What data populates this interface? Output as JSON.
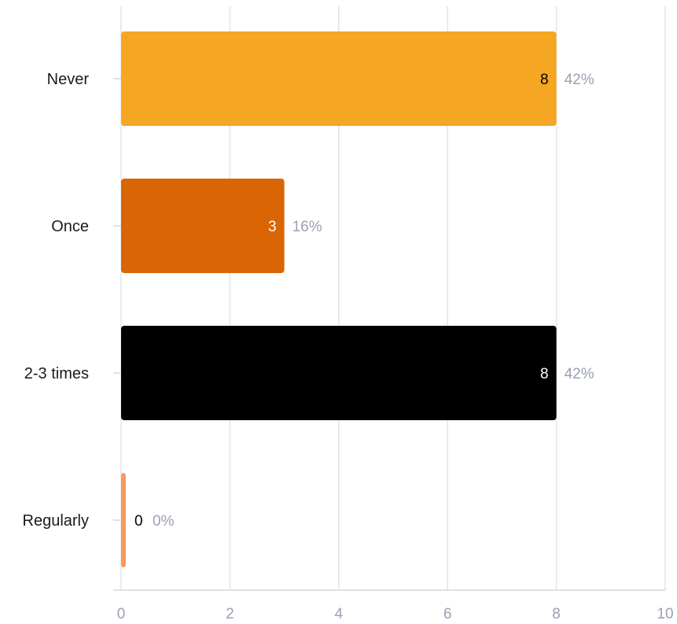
{
  "chart_data": {
    "type": "bar",
    "orientation": "horizontal",
    "categories": [
      "Never",
      "Once",
      "2-3 times",
      "Regularly"
    ],
    "values": [
      8,
      3,
      8,
      0
    ],
    "percent_labels": [
      "42%",
      "16%",
      "42%",
      "0%"
    ],
    "colors": [
      "#f5a623",
      "#d96504",
      "#000000",
      "#f79a5c"
    ],
    "value_label_colors": [
      "#000000",
      "#ffffff",
      "#ffffff",
      "#000000"
    ],
    "xticks": [
      0,
      2,
      4,
      6,
      8,
      10
    ],
    "xlim": [
      0,
      10
    ],
    "grid": true,
    "title": "",
    "xlabel": "",
    "ylabel": ""
  }
}
